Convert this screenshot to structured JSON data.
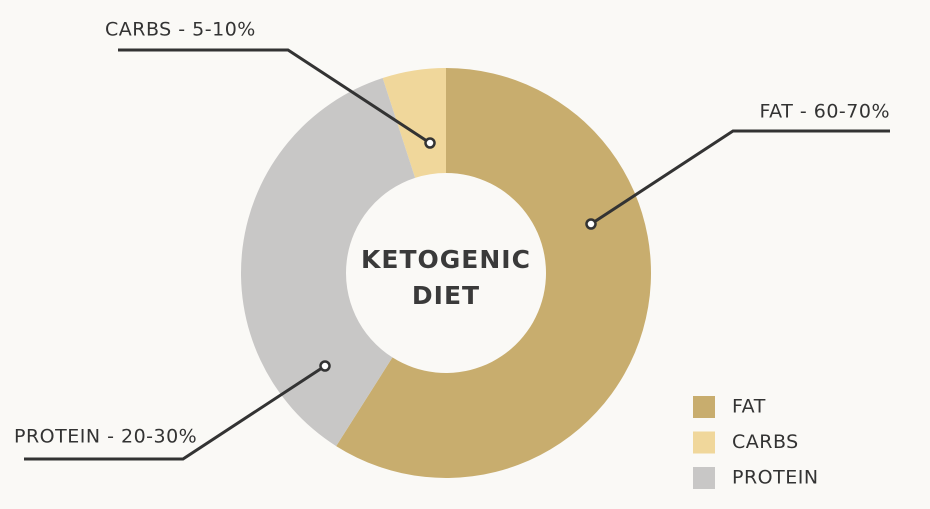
{
  "chart_data": {
    "type": "pie",
    "categories": [
      "FAT",
      "CARBS",
      "PROTEIN"
    ],
    "values": [
      59,
      5,
      36
    ],
    "colors": [
      "#c8ad6e",
      "#f0d79b",
      "#c8c7c6"
    ],
    "annotations": [
      "FAT - 60-70%",
      "CARBS - 5-10%",
      "PROTEIN - 20-30%"
    ],
    "center_text": [
      "KETOGENIC",
      "DIET"
    ],
    "legend": "bottom-right"
  }
}
